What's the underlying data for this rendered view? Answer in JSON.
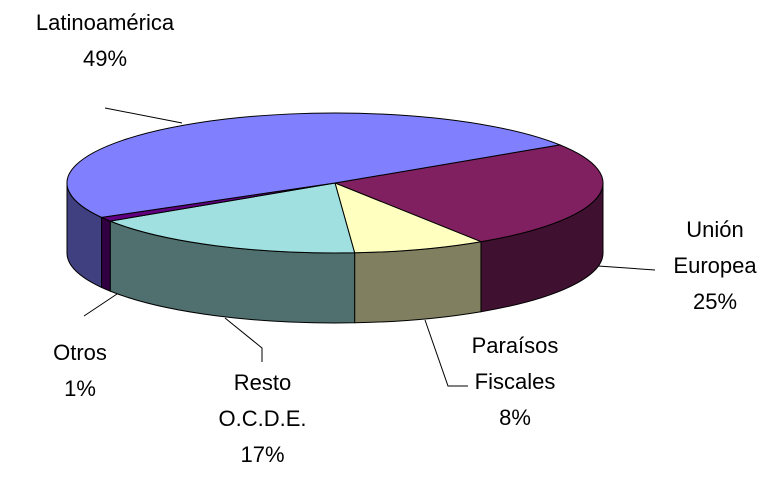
{
  "chart_data": {
    "type": "pie3d",
    "categories": [
      "Unión Europea",
      "Paraísos Fiscales",
      "Resto O.C.D.E.",
      "Otros",
      "Latinoamérica"
    ],
    "values": [
      25,
      8,
      17,
      1,
      49
    ],
    "value_labels": [
      "25%",
      "8%",
      "17%",
      "1%",
      "49%"
    ],
    "colors": [
      "#802060",
      "#ffffc0",
      "#a0e0e0",
      "#600080",
      "#8080ff"
    ]
  }
}
